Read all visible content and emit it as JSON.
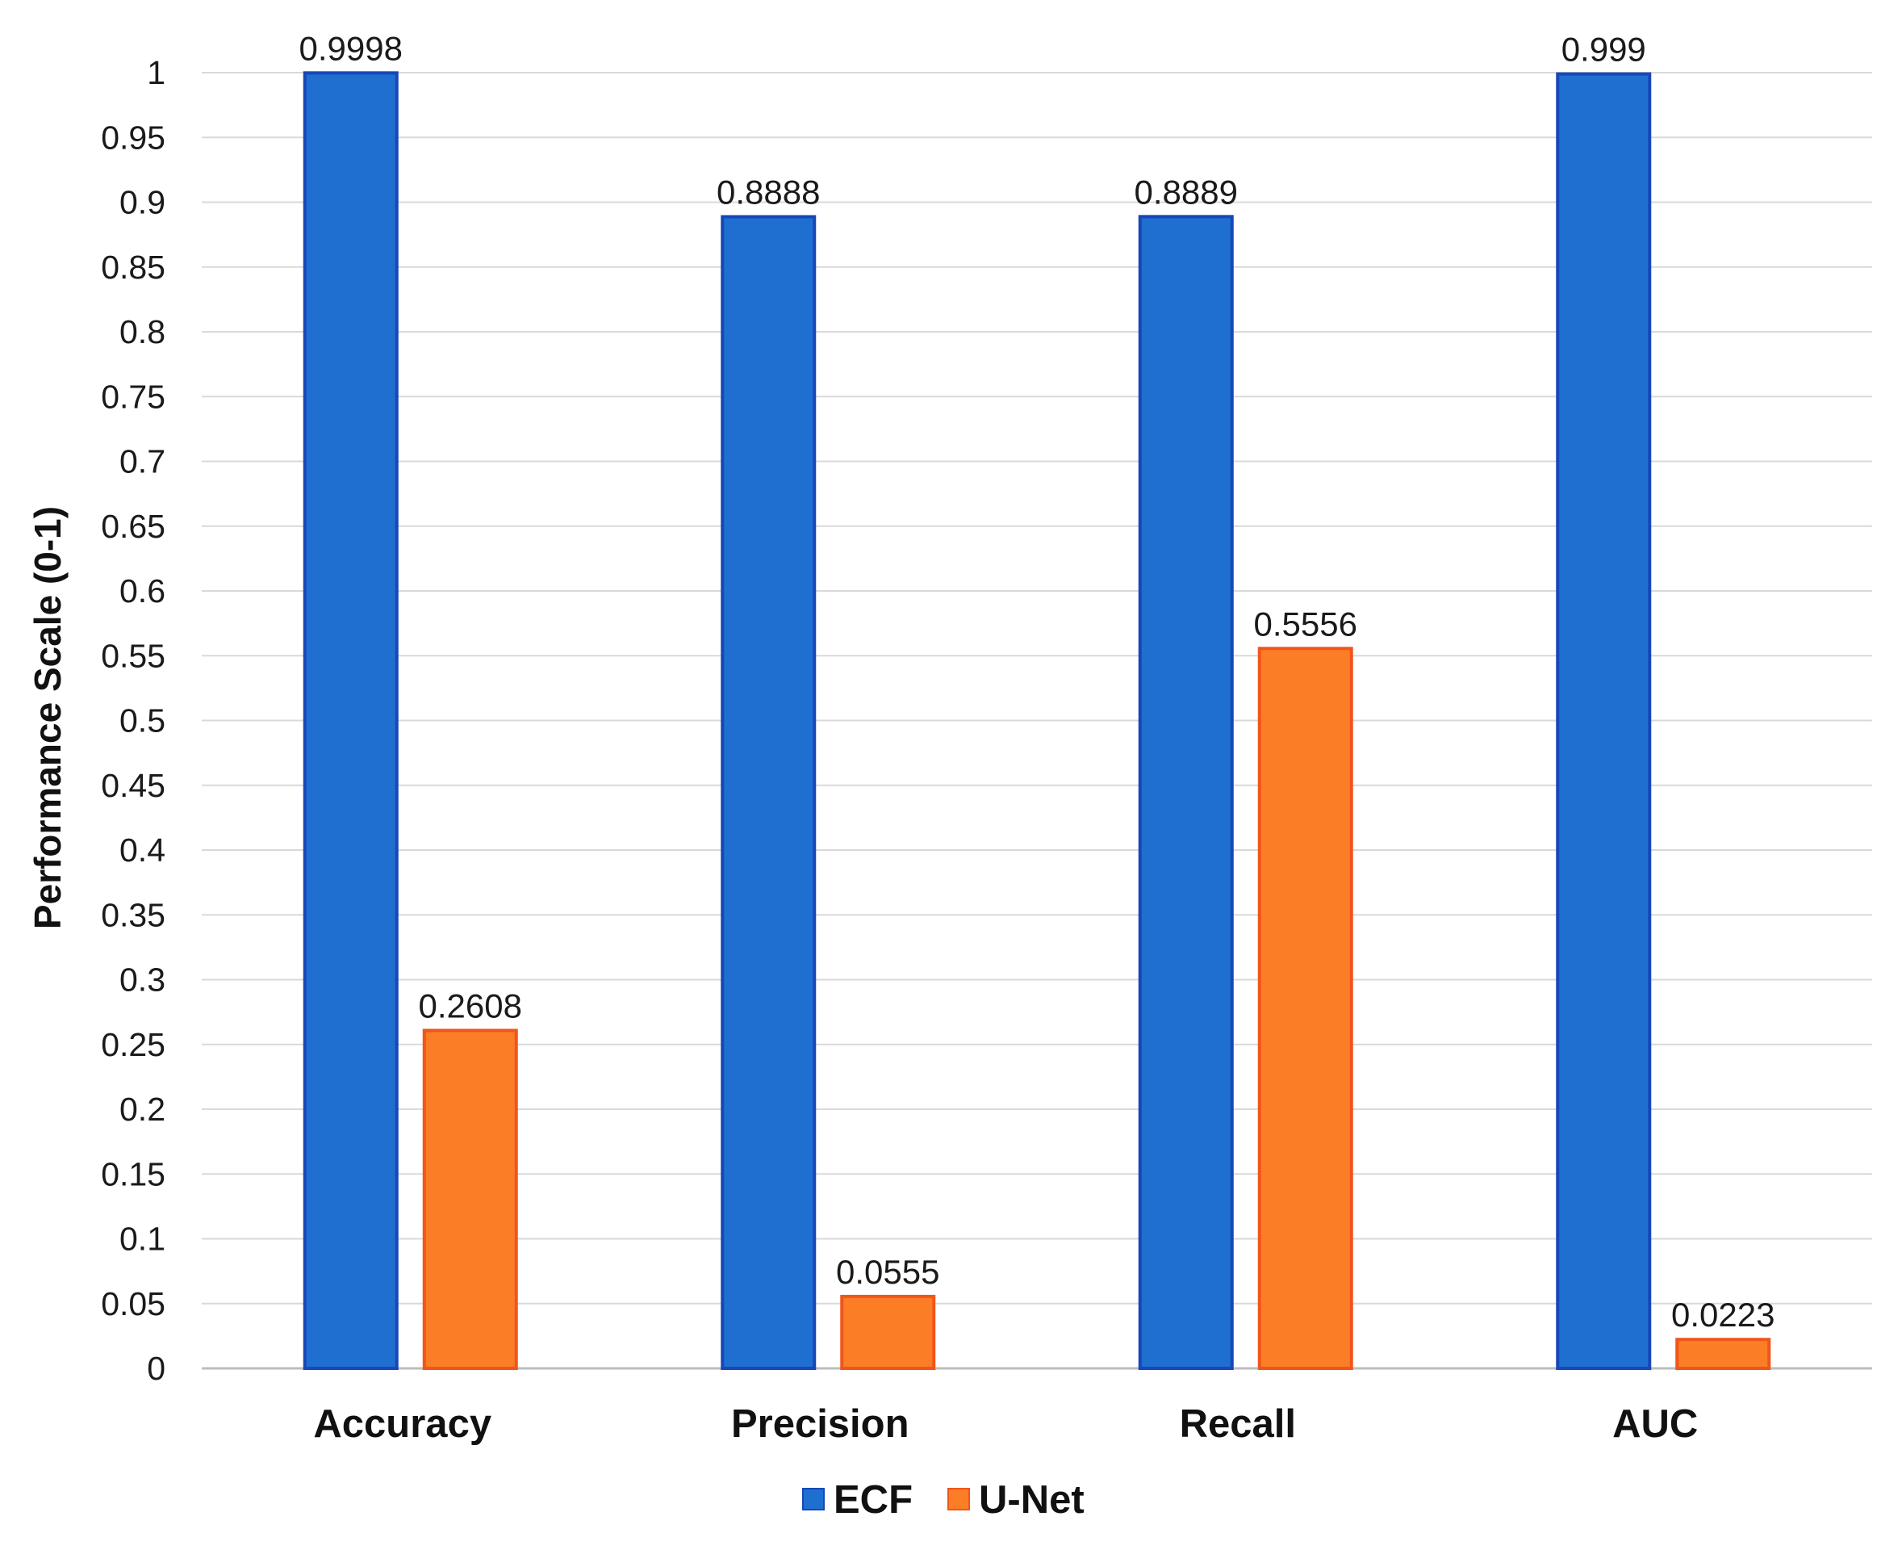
{
  "chart_data": {
    "type": "bar",
    "title": "",
    "xlabel": "",
    "ylabel": "Performance Scale (0-1)",
    "ylim": [
      0,
      1
    ],
    "ytick_step": 0.05,
    "yticks": [
      "0",
      "0.05",
      "0.1",
      "0.15",
      "0.2",
      "0.25",
      "0.3",
      "0.35",
      "0.4",
      "0.45",
      "0.5",
      "0.55",
      "0.6",
      "0.65",
      "0.7",
      "0.75",
      "0.8",
      "0.85",
      "0.9",
      "0.95",
      "1"
    ],
    "grid": true,
    "legend_position": "bottom",
    "categories": [
      "Accuracy",
      "Precision",
      "Recall",
      "AUC"
    ],
    "series": [
      {
        "name": "ECF",
        "color": "#1f6fd1",
        "edge_color": "#1747b8",
        "values": [
          0.9998,
          0.8888,
          0.8889,
          0.999
        ],
        "labels": [
          "0.9998",
          "0.8888",
          "0.8889",
          "0.999"
        ]
      },
      {
        "name": "U-Net",
        "color": "#fb7e26",
        "edge_color": "#f0551c",
        "values": [
          0.2608,
          0.0555,
          0.5556,
          0.0223
        ],
        "labels": [
          "0.2608",
          "0.0555",
          "0.5556",
          "0.0223"
        ]
      }
    ]
  }
}
